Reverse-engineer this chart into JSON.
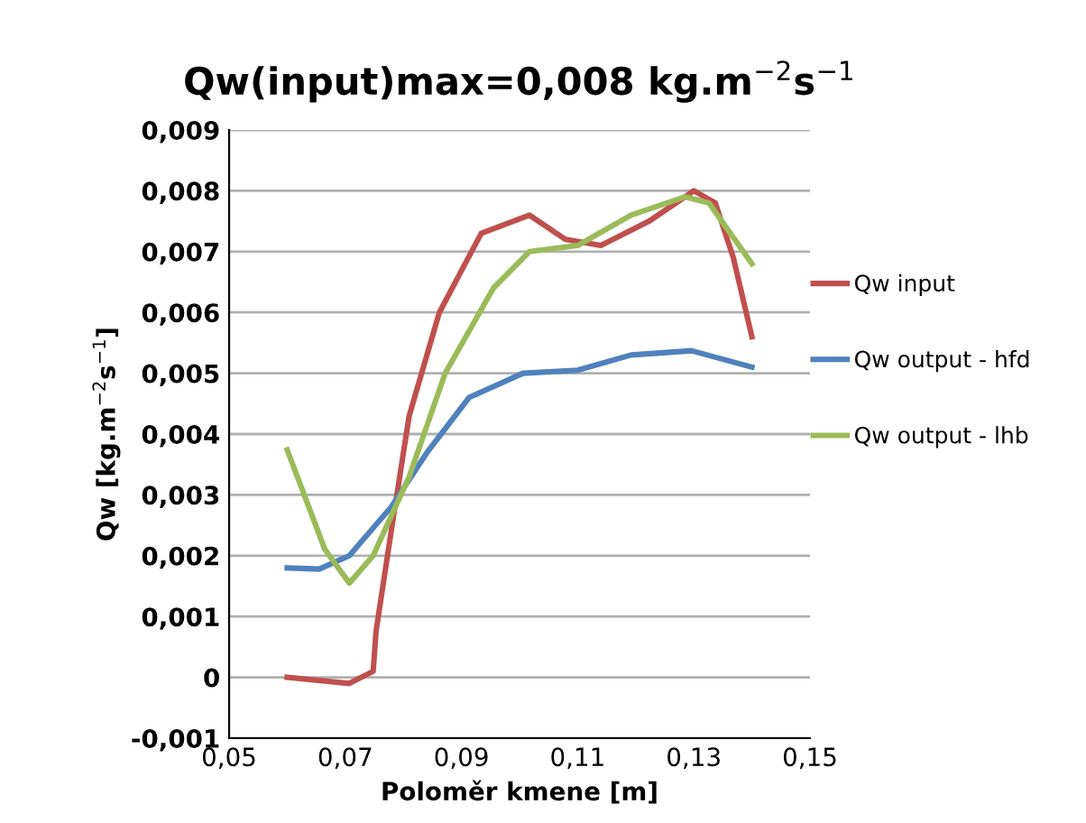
{
  "chart_data": {
    "type": "line",
    "title": "Qw(input)max=0,008 kg.m$^{−2}$s$^{−1}$",
    "xlabel": "Poloměr kmene [m]",
    "ylabel": "Qw [kg.m$^{−2}$s$^{−1}$]",
    "xlim": [
      0.05,
      0.15
    ],
    "xticks": [
      {
        "value": 0.05,
        "label": "0,05"
      },
      {
        "value": 0.07,
        "label": "0,07"
      },
      {
        "value": 0.09,
        "label": "0,09"
      },
      {
        "value": 0.11,
        "label": "0,11"
      },
      {
        "value": 0.13,
        "label": "0,13"
      },
      {
        "value": 0.15,
        "label": "0,15"
      }
    ],
    "ylim": [
      -0.001,
      0.009
    ],
    "yticks": [
      {
        "value": -0.001,
        "label": "-0,001"
      },
      {
        "value": 0,
        "label": "0"
      },
      {
        "value": 0.001,
        "label": "0,001"
      },
      {
        "value": 0.002,
        "label": "0,002"
      },
      {
        "value": 0.003,
        "label": "0,003"
      },
      {
        "value": 0.004,
        "label": "0,004"
      },
      {
        "value": 0.005,
        "label": "0,005"
      },
      {
        "value": 0.006,
        "label": "0,006"
      },
      {
        "value": 0.007,
        "label": "0,007"
      },
      {
        "value": 0.008,
        "label": "0,008"
      },
      {
        "value": 0.009,
        "label": "0,009"
      }
    ],
    "grid": "y",
    "legend": "right",
    "marker": "none",
    "line_style": "solid",
    "series": [
      {
        "name": "Qw input",
        "color": "#c0504d",
        "x": [
          0.06,
          0.0707,
          0.0748,
          0.0753,
          0.0779,
          0.081,
          0.0862,
          0.0934,
          0.1017,
          0.1079,
          0.114,
          0.1223,
          0.13,
          0.1337,
          0.1368,
          0.14
        ],
        "values": [
          0.0,
          -0.0001,
          0.0001,
          0.00076,
          0.0024,
          0.0043,
          0.006,
          0.0073,
          0.0076,
          0.0072,
          0.0071,
          0.0075,
          0.008,
          0.0078,
          0.0069,
          0.0056
        ]
      },
      {
        "name": "Qw output - hfd",
        "color": "#4f81bd",
        "x": [
          0.06,
          0.0655,
          0.0707,
          0.0779,
          0.0841,
          0.0913,
          0.1006,
          0.11,
          0.1192,
          0.1296,
          0.14
        ],
        "values": [
          0.0018,
          0.00178,
          0.002,
          0.0028,
          0.0037,
          0.0046,
          0.005,
          0.00505,
          0.0053,
          0.00537,
          0.0051
        ]
      },
      {
        "name": "Qw output - lhb",
        "color": "#9bbb59",
        "x": [
          0.06,
          0.0665,
          0.0707,
          0.0748,
          0.081,
          0.0872,
          0.0955,
          0.1017,
          0.11,
          0.1192,
          0.1285,
          0.1326,
          0.14
        ],
        "values": [
          0.00374,
          0.0021,
          0.00155,
          0.002,
          0.0033,
          0.005,
          0.0064,
          0.007,
          0.0071,
          0.0076,
          0.0079,
          0.0078,
          0.0068
        ]
      }
    ]
  }
}
